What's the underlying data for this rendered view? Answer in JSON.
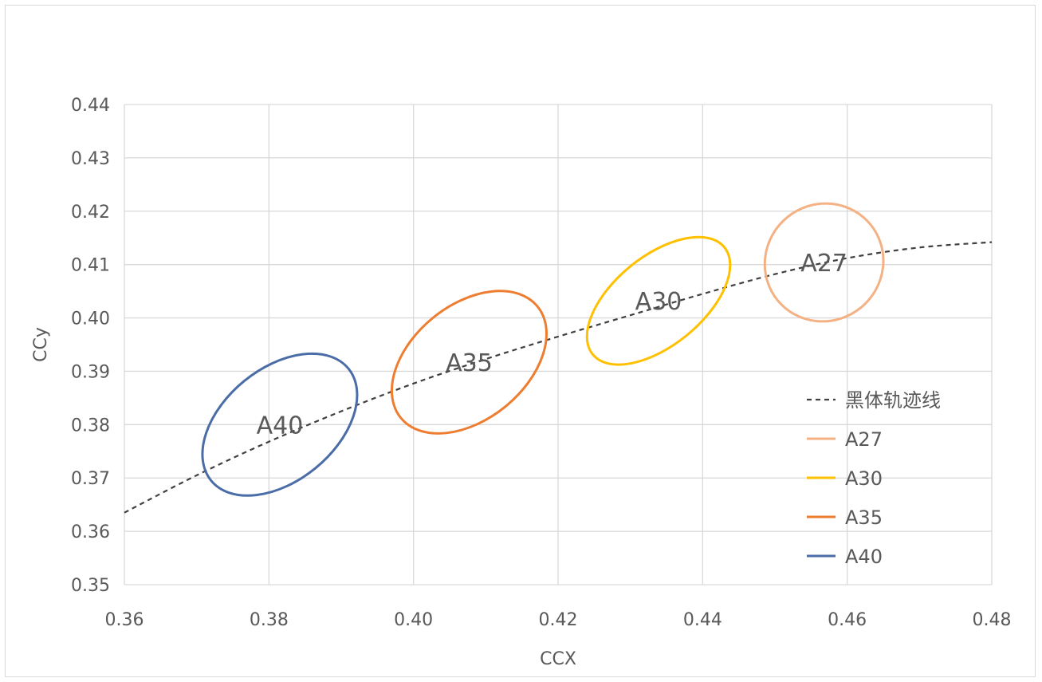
{
  "chart_data": {
    "type": "scatter",
    "xlabel": "CCX",
    "ylabel": "CCy",
    "xlim": [
      0.36,
      0.48
    ],
    "ylim": [
      0.35,
      0.44
    ],
    "xticks": [
      "0.36",
      "0.38",
      "0.40",
      "0.42",
      "0.44",
      "0.46",
      "0.48"
    ],
    "yticks": [
      "0.35",
      "0.36",
      "0.37",
      "0.38",
      "0.39",
      "0.40",
      "0.41",
      "0.42",
      "0.43",
      "0.44"
    ],
    "grid": true,
    "legend_position": "bottom-right",
    "legend": [
      "黑体轨迹线",
      "A27",
      "A30",
      "A35",
      "A40"
    ],
    "blackbody_locus": {
      "name": "黑体轨迹线",
      "style": "dashed",
      "color": "#404040",
      "x": [
        0.36,
        0.37,
        0.38,
        0.39,
        0.4,
        0.41,
        0.42,
        0.43,
        0.44,
        0.45,
        0.46,
        0.47,
        0.48
      ],
      "y": [
        0.3635,
        0.3705,
        0.3768,
        0.3825,
        0.3877,
        0.3923,
        0.3965,
        0.4005,
        0.4045,
        0.4082,
        0.4112,
        0.4132,
        0.4142
      ]
    },
    "series": [
      {
        "name": "A27",
        "label": "A27",
        "color": "#f4b183",
        "center": [
          0.4568,
          0.4104
        ],
        "x_min": 0.4486,
        "x_max": 0.465,
        "y_min": 0.3993,
        "y_max": 0.4214
      },
      {
        "name": "A30",
        "label": "A30",
        "color": "#ffc000",
        "center": [
          0.4339,
          0.4032
        ],
        "x_min": 0.424,
        "x_max": 0.4438,
        "y_min": 0.3912,
        "y_max": 0.4151
      },
      {
        "name": "A35",
        "label": "A35",
        "color": "#ed7d31",
        "center": [
          0.4077,
          0.3917
        ],
        "x_min": 0.397,
        "x_max": 0.4184,
        "y_min": 0.3784,
        "y_max": 0.4051
      },
      {
        "name": "A40",
        "label": "A40",
        "color": "#4a6da7",
        "center": [
          0.3815,
          0.38
        ],
        "x_min": 0.3708,
        "x_max": 0.3922,
        "y_min": 0.3667,
        "y_max": 0.3933
      }
    ]
  }
}
